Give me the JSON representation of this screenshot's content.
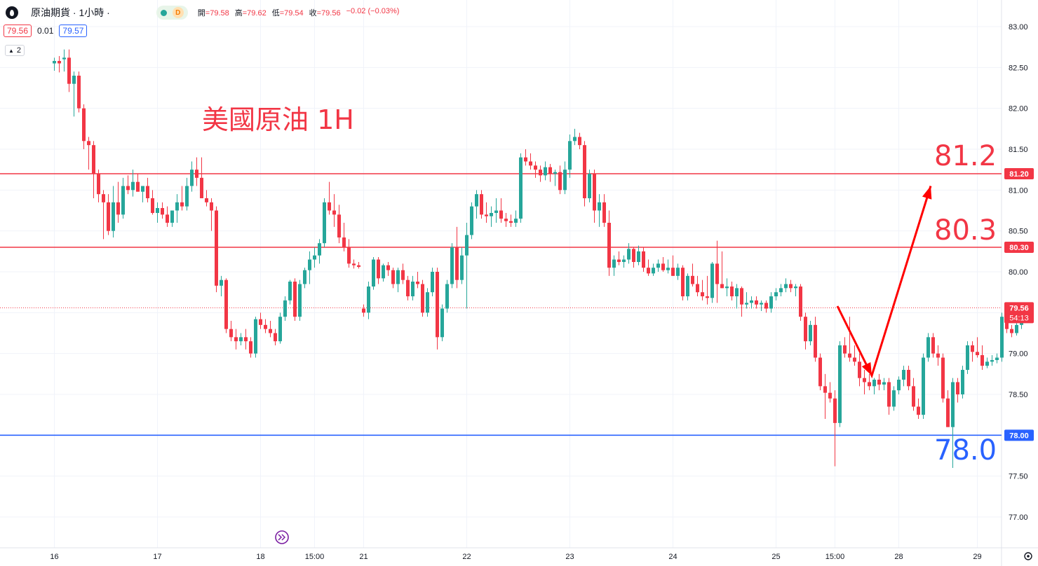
{
  "header": {
    "symbol": "原油期貨 · 1小時 ·",
    "d_badge": "D",
    "ohlc": [
      {
        "k": "開",
        "v": "=79.58"
      },
      {
        "k": "高",
        "v": "=79.62"
      },
      {
        "k": "低",
        "v": "=79.54"
      },
      {
        "k": "收",
        "v": "=79.56"
      },
      {
        "k": "",
        "v": "−0.02 (−0.03%)"
      }
    ],
    "bid": "79.56",
    "spread": "0.01",
    "ask": "79.57",
    "indicator_count": "2"
  },
  "annotations": {
    "title": "美國原油 1H",
    "level_high": "81.2",
    "level_mid": "80.3",
    "level_low": "78.0"
  },
  "colors": {
    "up": "#26a69a",
    "down": "#f23645",
    "resistance": "#f23645",
    "support": "#2962ff",
    "arrow": "#ff0000"
  },
  "chart_data": {
    "type": "candlestick",
    "symbol": "原油期貨",
    "interval": "1小時",
    "ylim": [
      76.83,
      83.15
    ],
    "y_ticks": [
      "83.00",
      "82.50",
      "82.00",
      "81.50",
      "81.00",
      "80.50",
      "80.00",
      "79.50",
      "79.00",
      "78.50",
      "78.00",
      "77.50",
      "77.00"
    ],
    "x_ticks": [
      {
        "label": "16",
        "i": 0
      },
      {
        "label": "17",
        "i": 21
      },
      {
        "label": "18",
        "i": 42
      },
      {
        "label": "15:00",
        "i": 53
      },
      {
        "label": "21",
        "i": 63
      },
      {
        "label": "22",
        "i": 84
      },
      {
        "label": "23",
        "i": 105
      },
      {
        "label": "24",
        "i": 126
      },
      {
        "label": "25",
        "i": 147
      },
      {
        "label": "15:00",
        "i": 159
      },
      {
        "label": "28",
        "i": 172
      },
      {
        "label": "29",
        "i": 188
      }
    ],
    "horizontal_levels": [
      {
        "value": 81.2,
        "label": "81.20",
        "color": "#f23645"
      },
      {
        "value": 80.3,
        "label": "80.30",
        "color": "#f23645"
      },
      {
        "value": 78.0,
        "label": "78.00",
        "color": "#2962ff"
      }
    ],
    "last_price": {
      "value": 79.56,
      "label": "79.56",
      "countdown": "54:13"
    },
    "projection_path": [
      [
        159.5,
        79.58
      ],
      [
        166.5,
        78.73
      ],
      [
        178.5,
        81.05
      ]
    ],
    "candles": [
      [
        82.55,
        82.62,
        82.46,
        82.58
      ],
      [
        82.58,
        82.64,
        82.44,
        82.55
      ],
      [
        82.6,
        82.72,
        82.45,
        82.62
      ],
      [
        82.62,
        82.72,
        82.2,
        82.3
      ],
      [
        82.3,
        82.45,
        81.9,
        82.4
      ],
      [
        82.4,
        82.45,
        81.95,
        82.0
      ],
      [
        82.0,
        82.05,
        81.5,
        81.6
      ],
      [
        81.6,
        81.65,
        81.25,
        81.55
      ],
      [
        81.55,
        81.6,
        80.9,
        81.2
      ],
      [
        81.2,
        81.25,
        80.85,
        80.95
      ],
      [
        80.95,
        81.0,
        80.4,
        80.85
      ],
      [
        80.85,
        80.95,
        80.45,
        80.5
      ],
      [
        80.5,
        81.05,
        80.42,
        80.85
      ],
      [
        80.85,
        81.1,
        80.6,
        80.7
      ],
      [
        80.7,
        81.15,
        80.65,
        81.05
      ],
      [
        81.05,
        81.18,
        80.95,
        81.0
      ],
      [
        81.0,
        81.25,
        80.92,
        81.1
      ],
      [
        81.1,
        81.2,
        80.98,
        80.98
      ],
      [
        80.98,
        81.02,
        80.85,
        81.05
      ],
      [
        81.05,
        81.15,
        80.85,
        80.9
      ],
      [
        80.9,
        81.0,
        80.7,
        80.72
      ],
      [
        80.72,
        80.85,
        80.6,
        80.78
      ],
      [
        80.78,
        80.85,
        80.65,
        80.7
      ],
      [
        80.7,
        80.8,
        80.55,
        80.6
      ],
      [
        80.6,
        80.75,
        80.55,
        80.75
      ],
      [
        80.75,
        80.95,
        80.6,
        80.85
      ],
      [
        80.85,
        81.05,
        80.75,
        80.8
      ],
      [
        80.8,
        81.15,
        80.75,
        81.05
      ],
      [
        81.05,
        81.35,
        80.98,
        81.25
      ],
      [
        81.25,
        81.4,
        81.05,
        81.15
      ],
      [
        81.15,
        81.4,
        80.95,
        80.9
      ],
      [
        80.9,
        81.0,
        80.8,
        80.85
      ],
      [
        80.85,
        80.9,
        80.5,
        80.75
      ],
      [
        80.75,
        80.8,
        79.75,
        79.83
      ],
      [
        79.83,
        79.95,
        79.7,
        79.9
      ],
      [
        79.9,
        79.92,
        79.25,
        79.3
      ],
      [
        79.3,
        79.4,
        79.15,
        79.2
      ],
      [
        79.2,
        79.3,
        79.05,
        79.15
      ],
      [
        79.15,
        79.25,
        79.1,
        79.2
      ],
      [
        79.2,
        79.3,
        79.05,
        79.15
      ],
      [
        79.15,
        79.2,
        78.95,
        79.0
      ],
      [
        79.0,
        79.45,
        78.95,
        79.42
      ],
      [
        79.42,
        79.5,
        79.3,
        79.35
      ],
      [
        79.35,
        79.42,
        79.25,
        79.3
      ],
      [
        79.3,
        79.4,
        79.2,
        79.25
      ],
      [
        79.25,
        79.3,
        79.1,
        79.15
      ],
      [
        79.15,
        79.5,
        79.12,
        79.45
      ],
      [
        79.45,
        79.7,
        79.4,
        79.65
      ],
      [
        79.65,
        79.9,
        79.6,
        79.88
      ],
      [
        79.88,
        79.92,
        79.4,
        79.45
      ],
      [
        79.45,
        79.9,
        79.4,
        79.85
      ],
      [
        79.85,
        80.05,
        79.8,
        80.02
      ],
      [
        80.02,
        80.25,
        79.85,
        80.15
      ],
      [
        80.15,
        80.3,
        80.05,
        80.2
      ],
      [
        80.2,
        80.4,
        80.1,
        80.35
      ],
      [
        80.35,
        80.9,
        80.3,
        80.85
      ],
      [
        80.85,
        81.1,
        80.7,
        80.75
      ],
      [
        80.75,
        80.95,
        80.55,
        80.7
      ],
      [
        80.7,
        80.82,
        80.35,
        80.42
      ],
      [
        80.42,
        80.6,
        80.25,
        80.3
      ],
      [
        80.3,
        80.4,
        80.05,
        80.1
      ],
      [
        80.1,
        80.15,
        80.04,
        80.08
      ],
      [
        80.08,
        80.12,
        80.04,
        80.06
      ],
      [
        79.55,
        79.6,
        79.45,
        79.5
      ],
      [
        79.5,
        79.88,
        79.42,
        79.82
      ],
      [
        79.82,
        80.18,
        79.78,
        80.15
      ],
      [
        80.15,
        80.18,
        79.85,
        79.92
      ],
      [
        79.92,
        80.1,
        79.88,
        80.08
      ],
      [
        80.08,
        80.12,
        79.95,
        80.02
      ],
      [
        80.02,
        80.05,
        79.8,
        79.85
      ],
      [
        79.85,
        80.05,
        79.75,
        80.02
      ],
      [
        80.02,
        80.1,
        79.85,
        79.9
      ],
      [
        79.9,
        79.95,
        79.65,
        79.7
      ],
      [
        79.7,
        79.95,
        79.65,
        79.88
      ],
      [
        79.88,
        80.0,
        79.8,
        79.85
      ],
      [
        79.85,
        79.9,
        79.45,
        79.5
      ],
      [
        79.5,
        79.8,
        79.45,
        79.75
      ],
      [
        79.75,
        80.05,
        79.7,
        80.0
      ],
      [
        80.0,
        80.05,
        79.05,
        79.2
      ],
      [
        79.2,
        79.6,
        79.15,
        79.55
      ],
      [
        79.55,
        79.9,
        79.5,
        79.85
      ],
      [
        79.85,
        80.35,
        79.8,
        80.3
      ],
      [
        80.3,
        80.55,
        79.8,
        79.9
      ],
      [
        79.9,
        80.3,
        79.85,
        80.2
      ],
      [
        80.2,
        80.6,
        79.55,
        80.45
      ],
      [
        80.45,
        80.85,
        80.4,
        80.8
      ],
      [
        80.8,
        81.0,
        80.65,
        80.95
      ],
      [
        80.95,
        81.0,
        80.65,
        80.7
      ],
      [
        80.7,
        80.85,
        80.6,
        80.68
      ],
      [
        80.68,
        80.8,
        80.55,
        80.72
      ],
      [
        80.72,
        80.9,
        80.6,
        80.75
      ],
      [
        80.75,
        80.9,
        80.6,
        80.65
      ],
      [
        80.65,
        80.72,
        80.55,
        80.62
      ],
      [
        80.62,
        80.7,
        80.55,
        80.6
      ],
      [
        80.6,
        80.75,
        80.55,
        80.65
      ],
      [
        80.65,
        81.45,
        80.6,
        81.4
      ],
      [
        81.4,
        81.5,
        81.3,
        81.35
      ],
      [
        81.35,
        81.45,
        81.25,
        81.3
      ],
      [
        81.3,
        81.35,
        81.15,
        81.25
      ],
      [
        81.25,
        81.3,
        81.1,
        81.18
      ],
      [
        81.18,
        81.35,
        81.12,
        81.28
      ],
      [
        81.28,
        81.32,
        81.1,
        81.2
      ],
      [
        81.2,
        81.25,
        81.05,
        81.22
      ],
      [
        81.22,
        81.3,
        80.95,
        81.0
      ],
      [
        81.0,
        81.35,
        80.95,
        81.25
      ],
      [
        81.25,
        81.68,
        81.15,
        81.6
      ],
      [
        81.6,
        81.75,
        81.55,
        81.65
      ],
      [
        81.65,
        81.7,
        81.5,
        81.55
      ],
      [
        81.55,
        81.6,
        80.8,
        80.9
      ],
      [
        80.9,
        81.25,
        80.85,
        81.2
      ],
      [
        81.2,
        81.25,
        80.6,
        80.75
      ],
      [
        80.75,
        80.95,
        80.55,
        80.85
      ],
      [
        80.85,
        80.95,
        80.55,
        80.6
      ],
      [
        80.6,
        80.75,
        79.95,
        80.05
      ],
      [
        80.05,
        80.2,
        79.95,
        80.15
      ],
      [
        80.15,
        80.25,
        80.08,
        80.12
      ],
      [
        80.12,
        80.2,
        80.05,
        80.15
      ],
      [
        80.15,
        80.35,
        80.1,
        80.28
      ],
      [
        80.28,
        80.3,
        80.05,
        80.12
      ],
      [
        80.12,
        80.32,
        80.08,
        80.25
      ],
      [
        80.25,
        80.3,
        80.0,
        80.05
      ],
      [
        80.05,
        80.15,
        79.95,
        79.98
      ],
      [
        79.98,
        80.1,
        79.95,
        80.05
      ],
      [
        80.05,
        80.15,
        80.0,
        80.1
      ],
      [
        80.1,
        80.18,
        80.0,
        80.02
      ],
      [
        80.02,
        80.15,
        79.98,
        80.05
      ],
      [
        80.05,
        80.2,
        79.95,
        79.95
      ],
      [
        79.95,
        80.1,
        79.9,
        80.05
      ],
      [
        80.05,
        80.08,
        79.65,
        79.7
      ],
      [
        79.7,
        79.98,
        79.65,
        79.95
      ],
      [
        79.95,
        80.1,
        79.82,
        79.85
      ],
      [
        79.85,
        79.95,
        79.7,
        79.75
      ],
      [
        79.75,
        79.9,
        79.65,
        79.7
      ],
      [
        79.7,
        79.95,
        79.6,
        79.68
      ],
      [
        79.68,
        80.12,
        79.62,
        80.1
      ],
      [
        80.1,
        80.38,
        79.62,
        79.85
      ],
      [
        79.85,
        80.25,
        79.8,
        79.8
      ],
      [
        79.8,
        79.92,
        79.7,
        79.82
      ],
      [
        79.82,
        79.88,
        79.65,
        79.7
      ],
      [
        79.7,
        79.85,
        79.55,
        79.8
      ],
      [
        79.8,
        79.82,
        79.45,
        79.6
      ],
      [
        79.6,
        79.75,
        79.55,
        79.62
      ],
      [
        79.62,
        79.7,
        79.55,
        79.65
      ],
      [
        79.65,
        79.7,
        79.55,
        79.6
      ],
      [
        79.6,
        79.65,
        79.52,
        79.62
      ],
      [
        79.62,
        79.65,
        79.5,
        79.55
      ],
      [
        79.55,
        79.75,
        79.5,
        79.7
      ],
      [
        79.7,
        79.8,
        79.65,
        79.75
      ],
      [
        79.75,
        79.85,
        79.7,
        79.8
      ],
      [
        79.8,
        79.92,
        79.75,
        79.85
      ],
      [
        79.85,
        79.9,
        79.75,
        79.8
      ],
      [
        79.8,
        79.85,
        79.7,
        79.82
      ],
      [
        79.82,
        79.85,
        79.4,
        79.45
      ],
      [
        79.45,
        79.5,
        79.05,
        79.15
      ],
      [
        79.15,
        79.4,
        79.1,
        79.35
      ],
      [
        79.35,
        79.45,
        78.9,
        78.95
      ],
      [
        78.95,
        79.0,
        78.55,
        78.6
      ],
      [
        78.6,
        78.75,
        78.2,
        78.52
      ],
      [
        78.52,
        78.65,
        78.4,
        78.45
      ],
      [
        78.45,
        78.55,
        77.62,
        78.15
      ],
      [
        78.15,
        79.15,
        78.1,
        79.1
      ],
      [
        79.1,
        79.2,
        78.95,
        79.0
      ],
      [
        79.0,
        79.45,
        78.9,
        78.95
      ],
      [
        78.95,
        79.1,
        78.85,
        78.9
      ],
      [
        78.9,
        79.0,
        78.6,
        78.7
      ],
      [
        78.7,
        78.8,
        78.5,
        78.65
      ],
      [
        78.65,
        78.75,
        78.55,
        78.6
      ],
      [
        78.6,
        78.7,
        78.5,
        78.68
      ],
      [
        78.68,
        78.75,
        78.55,
        78.62
      ],
      [
        78.62,
        78.7,
        78.55,
        78.65
      ],
      [
        78.65,
        78.7,
        78.25,
        78.35
      ],
      [
        78.35,
        78.6,
        78.3,
        78.55
      ],
      [
        78.55,
        78.72,
        78.5,
        78.68
      ],
      [
        78.68,
        78.85,
        78.6,
        78.8
      ],
      [
        78.8,
        78.85,
        78.55,
        78.6
      ],
      [
        78.6,
        78.7,
        78.3,
        78.35
      ],
      [
        78.35,
        78.45,
        78.2,
        78.25
      ],
      [
        78.25,
        79.0,
        78.2,
        78.95
      ],
      [
        78.95,
        79.25,
        78.9,
        79.2
      ],
      [
        79.2,
        79.25,
        78.95,
        79.0
      ],
      [
        79.0,
        79.1,
        78.85,
        78.95
      ],
      [
        78.95,
        79.0,
        78.4,
        78.45
      ],
      [
        78.45,
        78.55,
        78.1,
        78.1
      ],
      [
        78.1,
        78.7,
        77.6,
        78.65
      ],
      [
        78.65,
        78.7,
        78.4,
        78.5
      ],
      [
        78.5,
        78.85,
        78.45,
        78.8
      ],
      [
        78.8,
        79.15,
        78.75,
        79.1
      ],
      [
        79.1,
        79.15,
        78.9,
        79.02
      ],
      [
        79.02,
        79.2,
        78.95,
        78.98
      ],
      [
        78.98,
        79.1,
        78.8,
        78.85
      ],
      [
        78.85,
        78.95,
        78.82,
        78.9
      ],
      [
        78.9,
        78.98,
        78.85,
        78.92
      ],
      [
        78.92,
        79.0,
        78.88,
        78.95
      ],
      [
        78.95,
        79.5,
        78.9,
        79.45
      ],
      [
        79.45,
        79.48,
        79.25,
        79.3
      ],
      [
        79.3,
        79.35,
        79.2,
        79.25
      ],
      [
        79.25,
        79.4,
        79.22,
        79.35
      ],
      [
        79.35,
        79.58,
        79.3,
        79.55
      ],
      [
        79.55,
        79.62,
        79.54,
        79.56
      ]
    ]
  }
}
